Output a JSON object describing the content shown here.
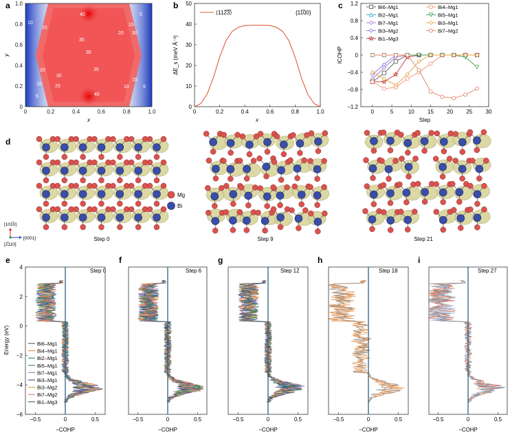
{
  "panels": {
    "a": {
      "label": "a",
      "xlabel": "x",
      "ylabel": "y",
      "xticks": [
        "0",
        "0.2",
        "0.4",
        "0.6",
        "0.8",
        "1.0"
      ],
      "yticks": [
        "0",
        "0.2",
        "0.4",
        "0.6",
        "0.8",
        "1.0"
      ],
      "contour_labels": [
        "40",
        "5",
        "10",
        "15",
        "15",
        "20",
        "30",
        "35",
        "35",
        "35",
        "20",
        "30",
        "25",
        "10",
        "5",
        "40",
        "15",
        "10",
        "5"
      ],
      "colors": {
        "high": "#e83a3a",
        "low": "#2a48c8",
        "mid": "#ffffff"
      }
    },
    "b": {
      "label": "b",
      "ylabel": "ΔE_s (meV Å⁻²)",
      "xlabel": "x",
      "legend": "⟨112̅3̅⟩",
      "annotation": "{11̅00}",
      "xticks": [
        "0",
        "0.2",
        "0.4",
        "0.6",
        "0.8",
        "1.0"
      ],
      "yticks": [
        "0",
        "10",
        "20",
        "30",
        "40",
        "50"
      ],
      "line_color": "#e05a3a"
    },
    "c": {
      "label": "c",
      "ylabel": "ICOHP",
      "xlabel": "Step",
      "xticks": [
        "0",
        "5",
        "10",
        "15",
        "20",
        "25",
        "30"
      ],
      "yticks": [
        "1.2",
        "0.8",
        "0.4",
        "0",
        "−0.4",
        "−0.8",
        "−1.2"
      ],
      "legend_left": [
        "Bi6–Mg1",
        "Bi2–Mg1",
        "Bi7–Mg1",
        "Bi3–Mg2",
        "Bi1–Mg3"
      ],
      "legend_right": [
        "Bi4–Mg1",
        "Bi5–Mg1",
        "Bi3–Mg1",
        "Bi7–Mg2"
      ]
    },
    "d": {
      "label": "d",
      "steps": [
        "Step 0",
        "Step 9",
        "Step 21"
      ],
      "legend": [
        "Mg",
        "Bi"
      ],
      "axis_up": "[101̅0]",
      "axis_right": "[0001]",
      "axis_out": "[2̅110]",
      "colors": {
        "mg": "#d9534f",
        "bi": "#3a4ea8",
        "iso": "#d8d49a"
      }
    },
    "e": {
      "label": "e",
      "step": "Step 0",
      "xlabel": "−COHP",
      "ylabel": "Energy (eV)",
      "legend": [
        "Bi6–Mg1",
        "Bi4–Mg1",
        "Bi2–Mg1",
        "Bi5–Mg1",
        "Bi7–Mg1",
        "Bi3–Mg1",
        "Bi3–Mg2",
        "Bi7–Mg2",
        "Bi1–Mg3"
      ]
    },
    "f": {
      "label": "f",
      "step": "Step 6",
      "xlabel": "−COHP"
    },
    "g": {
      "label": "g",
      "step": "Step 12",
      "xlabel": "−COHP"
    },
    "h": {
      "label": "h",
      "step": "Step 18",
      "xlabel": "−COHP"
    },
    "i": {
      "label": "i",
      "step": "Step 27",
      "xlabel": "−COHP"
    },
    "cohp_xticks": [
      "−0.5",
      "0",
      "0.5"
    ],
    "energy_ticks": [
      "4",
      "2",
      "0",
      "−2",
      "−4",
      "−6"
    ]
  },
  "chart_data": [
    {
      "type": "heatmap",
      "panel": "a",
      "title": "",
      "xlabel": "x",
      "ylabel": "y",
      "xlim": [
        0,
        1
      ],
      "ylim": [
        0,
        1
      ],
      "description_values": "energy surface peaking (~40) near (0.5,0.1) and (0.5,0.9), lowest (~5) near corners x=0,1 at y=0.5"
    },
    {
      "type": "line",
      "panel": "b",
      "xlabel": "x",
      "ylabel": "ΔE_s (meV Å⁻²)",
      "xlim": [
        0,
        1
      ],
      "ylim": [
        0,
        50
      ],
      "series": [
        {
          "name": "⟨112̅3̅⟩",
          "x": [
            0,
            0.05,
            0.1,
            0.15,
            0.2,
            0.25,
            0.3,
            0.35,
            0.4,
            0.5,
            0.6,
            0.65,
            0.7,
            0.75,
            0.8,
            0.85,
            0.9,
            0.95,
            1.0
          ],
          "y": [
            0,
            1.5,
            6,
            14,
            24,
            32,
            36.5,
            38.5,
            39.3,
            39.5,
            39.3,
            38.5,
            36.5,
            32,
            24,
            14,
            6,
            1.5,
            0
          ]
        }
      ]
    },
    {
      "type": "line",
      "panel": "c",
      "xlabel": "Step",
      "ylabel": "ICOHP",
      "xlim": [
        -3,
        30
      ],
      "ylim": [
        -1.2,
        1.2
      ],
      "x": [
        0,
        3,
        6,
        9,
        12,
        15,
        18,
        21,
        24,
        27
      ],
      "series": [
        {
          "name": "Bi6–Mg1",
          "color": "#555555",
          "y": [
            -0.62,
            -0.42,
            -0.15,
            0,
            0,
            0,
            0,
            0,
            0,
            0
          ]
        },
        {
          "name": "Bi2–Mg1",
          "color": "#2ab0d0",
          "y": [
            0,
            0,
            0,
            0,
            0,
            0,
            0,
            0,
            0,
            0
          ]
        },
        {
          "name": "Bi7–Mg1",
          "color": "#a070c8",
          "y": [
            -0.55,
            -0.3,
            -0.05,
            0,
            0,
            0,
            0,
            0,
            0,
            0
          ]
        },
        {
          "name": "Bi3–Mg2",
          "color": "#8a70d8",
          "y": [
            -0.45,
            -0.22,
            0,
            0,
            0,
            0,
            0,
            0,
            0,
            0
          ]
        },
        {
          "name": "Bi1–Mg3",
          "color": "#c03030",
          "y": [
            -0.62,
            -0.62,
            -0.45,
            -0.05,
            0,
            0,
            0,
            0,
            0,
            0
          ]
        },
        {
          "name": "Bi4–Mg1",
          "color": "#f09070",
          "y": [
            -0.62,
            -0.78,
            -0.75,
            -0.55,
            -0.4,
            -0.2,
            0,
            0,
            0,
            0
          ]
        },
        {
          "name": "Bi5–Mg1",
          "color": "#40a050",
          "y": [
            0,
            0,
            0,
            0,
            0,
            0,
            0,
            0,
            -0.05,
            -0.28
          ]
        },
        {
          "name": "Bi3–Mg1",
          "color": "#e0a040",
          "y": [
            -0.4,
            -0.55,
            -0.7,
            -0.45,
            -0.15,
            0,
            0,
            0,
            0,
            0
          ]
        },
        {
          "name": "Bi7–Mg2",
          "color": "#e08060",
          "y": [
            0,
            0,
            0,
            0,
            -0.35,
            -0.85,
            -0.97,
            -1.0,
            -0.92,
            -0.78
          ]
        }
      ]
    }
  ]
}
